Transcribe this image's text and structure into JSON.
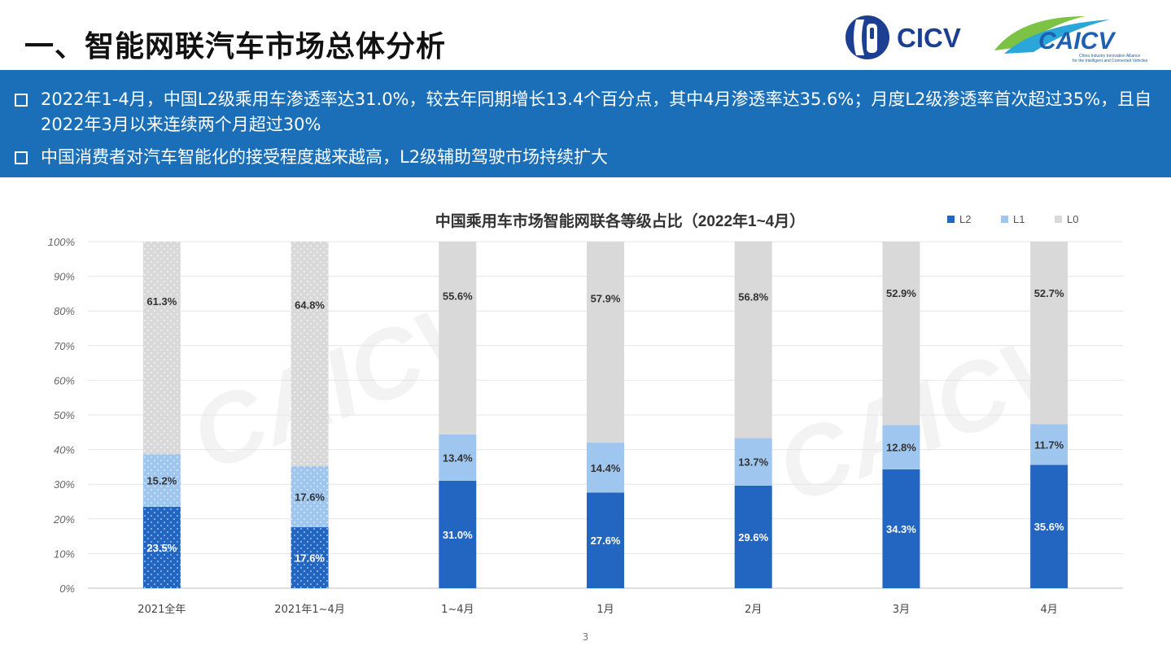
{
  "header": {
    "title": "一、智能网联汽车市场总体分析",
    "logo_cicv_text": "CICV",
    "logo_caicv_text": "CAICV",
    "logo_caicv_subtitle_1": "China Industry Innovation Alliance",
    "logo_caicv_subtitle_2": "for the Intelligent and Connected Vehicles"
  },
  "bullets": [
    "2022年1-4月，中国L2级乘用车渗透率达31.0%，较去年同期增长13.4个百分点，其中4月渗透率达35.6%；月度L2级渗透率首次超过35%，且自2022年3月以来连续两个月超过30%",
    "中国消费者对汽车智能化的接受程度越来越高，L2级辅助驾驶市场持续扩大"
  ],
  "colors": {
    "band": "#1a6fb8",
    "l2": "#2266c2",
    "l1": "#9fc6ee",
    "l0": "#d9d9d9",
    "grid": "#e4e4e4"
  },
  "chart_data": {
    "type": "bar",
    "stacked": true,
    "percent": true,
    "title": "中国乘用车市场智能网联各等级占比（2022年1~4月）",
    "categories": [
      "2021全年",
      "2021年1~4月",
      "1~4月",
      "1月",
      "2月",
      "3月",
      "4月"
    ],
    "series": [
      {
        "name": "L2",
        "values": [
          23.5,
          17.6,
          31.0,
          27.6,
          29.6,
          34.3,
          35.6
        ]
      },
      {
        "name": "L1",
        "values": [
          15.2,
          17.6,
          13.4,
          14.4,
          13.7,
          12.8,
          11.7
        ]
      },
      {
        "name": "L0",
        "values": [
          61.3,
          64.8,
          55.6,
          57.9,
          56.8,
          52.9,
          52.7
        ]
      }
    ],
    "ylim": [
      0,
      100
    ],
    "yticks": [
      "0%",
      "10%",
      "20%",
      "30%",
      "40%",
      "50%",
      "60%",
      "70%",
      "80%",
      "90%",
      "100%"
    ],
    "grid": true,
    "legend": "top-right",
    "dotted_pattern_categories": [
      0,
      1
    ]
  },
  "page_number": "3"
}
